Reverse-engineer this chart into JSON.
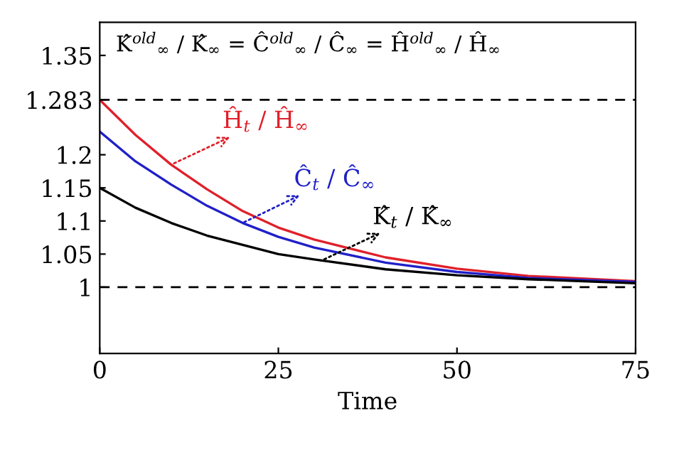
{
  "chart_data": {
    "type": "line",
    "xlabel": "Time",
    "x": [
      0,
      5,
      10,
      15,
      20,
      25,
      30,
      40,
      50,
      60,
      75
    ],
    "series": [
      {
        "color": "#e0202a",
        "values": [
          1.283,
          1.23,
          1.185,
          1.148,
          1.115,
          1.09,
          1.072,
          1.045,
          1.028,
          1.017,
          1.009
        ]
      },
      {
        "color": "#2020c8",
        "values": [
          1.235,
          1.19,
          1.155,
          1.123,
          1.097,
          1.076,
          1.06,
          1.037,
          1.023,
          1.014,
          1.008
        ]
      },
      {
        "color": "#000000",
        "values": [
          1.15,
          1.12,
          1.097,
          1.078,
          1.064,
          1.05,
          1.042,
          1.027,
          1.018,
          1.012,
          1.006
        ]
      }
    ],
    "xlim": [
      0,
      75
    ],
    "xticks": [
      0,
      25,
      50,
      75
    ],
    "ylim": [
      0.9,
      1.4
    ],
    "yticks": [
      1,
      1.05,
      1.1,
      1.15,
      1.2,
      1.283,
      1.35
    ],
    "ref_lines": [
      {
        "axis": "y",
        "value": 1.283,
        "line_style": "dashed",
        "color": "#000000"
      },
      {
        "axis": "y",
        "value": 1,
        "line_style": "dashed",
        "color": "#000000"
      }
    ],
    "annotations": [
      {
        "text": "Ĥ$_{t}$ / Ĥ$_{∞}$",
        "x": 10,
        "y": 1.185
      },
      {
        "text": "Ĉ$_{t}$ / Ĉ$_{∞}$",
        "x": 20,
        "y": 1.097
      },
      {
        "text": "K̂$_{t}$ / K̂$_{∞}$",
        "x": 31,
        "y": 1.04
      },
      "K̂$^{old}$$_{∞}$ / K̂$_{∞}$ = Ĉ$^{old}$$_{∞}$ / Ĉ$_{∞}$ = Ĥ$^{old}$$_{∞}$ / Ĥ$_{∞}$"
    ],
    "grid": false,
    "legend": false,
    "marker": "none",
    "line_style": "solid"
  }
}
